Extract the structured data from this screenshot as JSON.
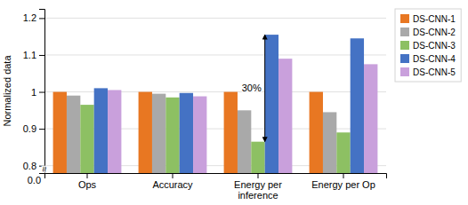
{
  "chart_data": {
    "type": "bar",
    "categories": [
      "Ops",
      "Accuracy",
      "Energy per\ninference",
      "Energy per Op"
    ],
    "series": [
      {
        "name": "DS-CNN-1",
        "color": "#E87722",
        "values": [
          1.0,
          1.0,
          1.0,
          1.0
        ]
      },
      {
        "name": "DS-CNN-2",
        "color": "#A9A9A9",
        "values": [
          0.99,
          0.995,
          0.95,
          0.945
        ]
      },
      {
        "name": "DS-CNN-3",
        "color": "#8DC063",
        "values": [
          0.965,
          0.985,
          0.865,
          0.89
        ]
      },
      {
        "name": "DS-CNN-4",
        "color": "#4472C4",
        "values": [
          1.01,
          0.997,
          1.155,
          1.145
        ]
      },
      {
        "name": "DS-CNN-5",
        "color": "#C9A0DC",
        "values": [
          1.005,
          0.988,
          1.09,
          1.075
        ]
      }
    ],
    "y_label": "Normalized data",
    "ylim": [
      0.78,
      1.225
    ],
    "yticks": [
      0.8,
      0.9,
      1,
      1.1,
      1.2
    ],
    "grid": true,
    "legend": "right",
    "annotations": [
      {
        "text": "30%",
        "y_top": 1.155,
        "y_bottom": 0.865
      },
      {
        "text": "≈"
      },
      {
        "text": "0.0"
      }
    ]
  }
}
